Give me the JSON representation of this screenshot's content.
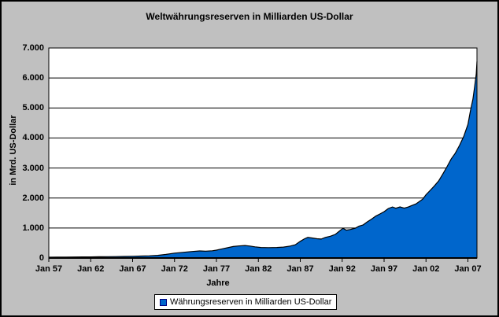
{
  "window": {
    "background_color": "#c0c0c0",
    "border_color": "#000000",
    "plot_background_color": "#ffffff"
  },
  "chart_data": {
    "type": "area",
    "title": "Weltwährungsreserven in Milliarden US-Dollar",
    "xlabel": "Jahre",
    "ylabel": "in Mrd. US-Dollar",
    "ylim": [
      0,
      7000
    ],
    "y_tick_values": [
      7000,
      6000,
      5000,
      4000,
      3000,
      2000,
      1000,
      0
    ],
    "y_tick_labels": [
      "7.000",
      "6.000",
      "5.000",
      "4.000",
      "3.000",
      "2.000",
      "1.000",
      "0"
    ],
    "x_tick_years": [
      1957,
      1962,
      1967,
      1972,
      1977,
      1982,
      1987,
      1992,
      1997,
      2002,
      2007
    ],
    "x_tick_labels": [
      "Jan 57",
      "Jan 62",
      "Jan 67",
      "Jan 72",
      "Jan 77",
      "Jan 82",
      "Jan 87",
      "Jan 92",
      "Jan 97",
      "Jan 02",
      "Jan 07"
    ],
    "x_range_years": [
      1957,
      2008.08
    ],
    "grid": true,
    "legend_position": "bottom",
    "series": [
      {
        "name": "Währungsreserven in Milliarden US-Dollar",
        "fill_color": "#0066cc",
        "line_color": "#000000",
        "points": [
          [
            1957,
            27
          ],
          [
            1958,
            29
          ],
          [
            1959,
            31
          ],
          [
            1960,
            34
          ],
          [
            1961,
            36
          ],
          [
            1962,
            38
          ],
          [
            1963,
            41
          ],
          [
            1964,
            44
          ],
          [
            1965,
            48
          ],
          [
            1966,
            52
          ],
          [
            1967,
            57
          ],
          [
            1968,
            65
          ],
          [
            1969,
            74
          ],
          [
            1970,
            90
          ],
          [
            1971,
            120
          ],
          [
            1972,
            162
          ],
          [
            1973,
            190
          ],
          [
            1974,
            215
          ],
          [
            1975,
            235
          ],
          [
            1975.7,
            227
          ],
          [
            1976.5,
            242
          ],
          [
            1977,
            262
          ],
          [
            1977.6,
            300
          ],
          [
            1978.3,
            340
          ],
          [
            1979,
            382
          ],
          [
            1979.6,
            400
          ],
          [
            1980.4,
            418
          ],
          [
            1981,
            398
          ],
          [
            1981.6,
            372
          ],
          [
            1982.3,
            352
          ],
          [
            1983.2,
            345
          ],
          [
            1984.2,
            352
          ],
          [
            1985,
            365
          ],
          [
            1985.8,
            398
          ],
          [
            1986.4,
            440
          ],
          [
            1987,
            555
          ],
          [
            1987.5,
            640
          ],
          [
            1987.9,
            688
          ],
          [
            1988.4,
            668
          ],
          [
            1989,
            642
          ],
          [
            1989.5,
            632
          ],
          [
            1990,
            688
          ],
          [
            1990.6,
            725
          ],
          [
            1991.2,
            790
          ],
          [
            1991.7,
            905
          ],
          [
            1992.1,
            992
          ],
          [
            1992.5,
            928
          ],
          [
            1993,
            952
          ],
          [
            1993.6,
            1000
          ],
          [
            1994,
            1058
          ],
          [
            1994.5,
            1105
          ],
          [
            1995,
            1205
          ],
          [
            1995.5,
            1295
          ],
          [
            1996,
            1395
          ],
          [
            1996.5,
            1468
          ],
          [
            1997,
            1545
          ],
          [
            1997.5,
            1648
          ],
          [
            1998,
            1702
          ],
          [
            1998.4,
            1660
          ],
          [
            1998.9,
            1705
          ],
          [
            1999.4,
            1662
          ],
          [
            1999.9,
            1702
          ],
          [
            2000.3,
            1748
          ],
          [
            2000.8,
            1805
          ],
          [
            2001.2,
            1880
          ],
          [
            2001.6,
            1962
          ],
          [
            2002,
            2108
          ],
          [
            2002.5,
            2255
          ],
          [
            2003,
            2405
          ],
          [
            2003.5,
            2565
          ],
          [
            2004,
            2795
          ],
          [
            2004.5,
            3040
          ],
          [
            2005,
            3298
          ],
          [
            2005.5,
            3495
          ],
          [
            2006,
            3752
          ],
          [
            2006.5,
            4052
          ],
          [
            2007,
            4452
          ],
          [
            2007.3,
            4905
          ],
          [
            2007.6,
            5302
          ],
          [
            2007.8,
            5705
          ],
          [
            2008,
            6140
          ],
          [
            2008.08,
            6550
          ]
        ]
      }
    ]
  },
  "legend": {
    "label": "Währungsreserven in Milliarden US-Dollar"
  }
}
